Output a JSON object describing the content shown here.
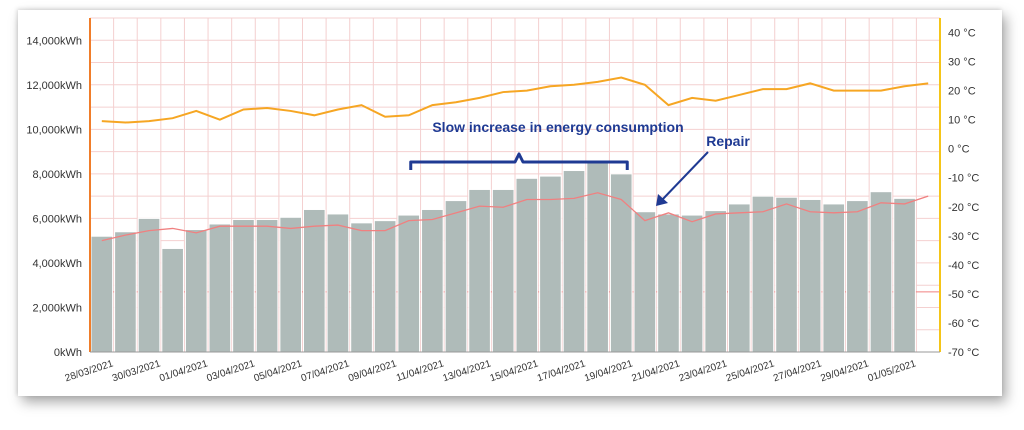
{
  "colors": {
    "bar": "#afbbb9",
    "bar_stroke": "#ffffff",
    "temp_line": "#f6a623",
    "red_line": "#f08080",
    "left_axis": "#f07d2a",
    "right_axis": "#f5c518",
    "grid": "#f4d0d0",
    "annotation": "#1f3a93"
  },
  "annotations": {
    "slow_increase": "Slow increase in energy consumption",
    "repair": "Repair"
  },
  "chart_data": {
    "type": "bar",
    "categories": [
      "28/03/2021",
      "29/03/2021",
      "30/03/2021",
      "31/03/2021",
      "01/04/2021",
      "02/04/2021",
      "03/04/2021",
      "04/04/2021",
      "05/04/2021",
      "06/04/2021",
      "07/04/2021",
      "08/04/2021",
      "09/04/2021",
      "10/04/2021",
      "11/04/2021",
      "12/04/2021",
      "13/04/2021",
      "14/04/2021",
      "15/04/2021",
      "16/04/2021",
      "17/04/2021",
      "18/04/2021",
      "19/04/2021",
      "20/04/2021",
      "21/04/2021",
      "22/04/2021",
      "23/04/2021",
      "24/04/2021",
      "25/04/2021",
      "26/04/2021",
      "27/04/2021",
      "28/04/2021",
      "29/04/2021",
      "30/04/2021",
      "01/05/2021",
      "02/05/2021"
    ],
    "x_tick_labels": [
      "28/03/2021",
      "30/03/2021",
      "01/04/2021",
      "03/04/2021",
      "05/04/2021",
      "07/04/2021",
      "09/04/2021",
      "11/04/2021",
      "13/04/2021",
      "15/04/2021",
      "17/04/2021",
      "19/04/2021",
      "21/04/2021",
      "23/04/2021",
      "25/04/2021",
      "27/04/2021",
      "29/04/2021",
      "01/05/2021"
    ],
    "series": [
      {
        "values": [
          5200,
          5400,
          6000,
          4650,
          5500,
          5750,
          5950,
          5950,
          6050,
          6400,
          6200,
          5800,
          5900,
          6150,
          6400,
          6800,
          7300,
          7300,
          7800,
          7900,
          8150,
          8550,
          8000,
          6300,
          6200,
          6150,
          6350,
          6650,
          7000,
          6950,
          6850,
          6650,
          6800,
          7200,
          6900,
          0
        ],
        "axis": "left"
      },
      {
        "values": [
          5000,
          5250,
          5450,
          5550,
          5350,
          5650,
          5650,
          5650,
          5550,
          5650,
          5700,
          5450,
          5450,
          5900,
          5950,
          6250,
          6550,
          6500,
          6850,
          6850,
          6900,
          7150,
          6850,
          5900,
          6250,
          5850,
          6200,
          6250,
          6300,
          6650,
          6300,
          6250,
          6300,
          6700,
          6650,
          7000
        ],
        "axis": "left"
      },
      {
        "values": [
          9.5,
          9,
          9.5,
          10.5,
          13,
          10,
          13.5,
          14,
          13,
          11.5,
          13.5,
          15,
          11,
          11.5,
          15,
          16,
          17.5,
          19.5,
          20,
          21.5,
          22,
          23,
          24.5,
          22,
          15,
          17.5,
          16.5,
          18.5,
          20.5,
          20.5,
          22.5,
          20,
          20,
          20,
          21.5,
          22.5
        ],
        "axis": "right"
      }
    ],
    "y_left": {
      "ticks": [
        "0kWh",
        "2,000kWh",
        "4,000kWh",
        "6,000kWh",
        "8,000kWh",
        "10,000kWh",
        "12,000kWh",
        "14,000kWh"
      ],
      "min": 0,
      "max": 15000
    },
    "y_right": {
      "ticks": [
        "-70 °C",
        "-60 °C",
        "-50 °C",
        "-40 °C",
        "-30 °C",
        "-20 °C",
        "-10 °C",
        "0 °C",
        "10 °C",
        "20 °C",
        "30 °C",
        "40 °C"
      ],
      "min": -70,
      "max": 45
    },
    "reference_line_kwh": 2700,
    "grid": true
  }
}
